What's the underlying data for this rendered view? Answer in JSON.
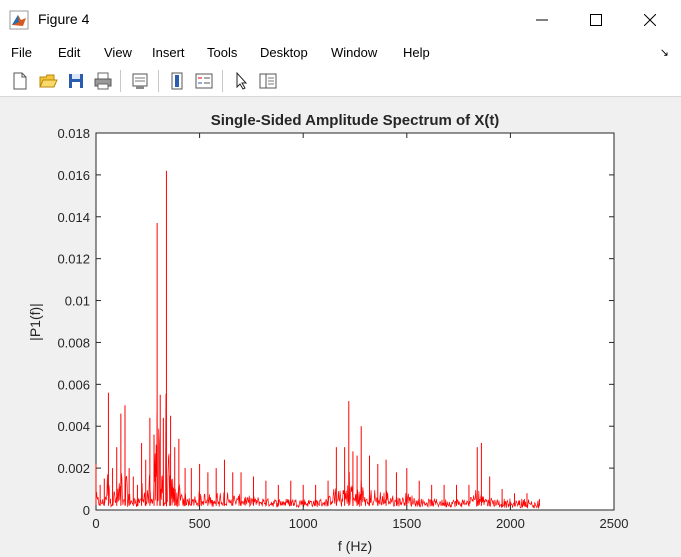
{
  "window": {
    "title": "Figure 4"
  },
  "menu": [
    "File",
    "Edit",
    "View",
    "Insert",
    "Tools",
    "Desktop",
    "Window",
    "Help"
  ],
  "toolbar": {
    "icons": [
      "new-figure-icon",
      "open-file-icon",
      "save-icon",
      "print-icon",
      "print-preview-icon",
      "colorbar-icon",
      "legend-icon",
      "pointer-icon",
      "property-editor-icon"
    ]
  },
  "colors": {
    "series": "#ff0000",
    "background": "#f0f0f0",
    "axes": "#ffffff"
  },
  "chart_data": {
    "type": "line",
    "title": "Single-Sided Amplitude Spectrum of X(t)",
    "xlabel": "f (Hz)",
    "ylabel": "|P1(f)|",
    "xlim": [
      0,
      2500
    ],
    "ylim": [
      0,
      0.018
    ],
    "xticks": [
      "0",
      "500",
      "1000",
      "1500",
      "2000",
      "2500"
    ],
    "yticks": [
      "0",
      "0.002",
      "0.004",
      "0.006",
      "0.008",
      "0.01",
      "0.012",
      "0.014",
      "0.016",
      "0.018"
    ],
    "grid": false,
    "series": [
      {
        "color": "#ff0000",
        "x": [
          0,
          20,
          40,
          60,
          80,
          100,
          120,
          140,
          160,
          180,
          200,
          220,
          240,
          260,
          280,
          295,
          310,
          325,
          340,
          360,
          380,
          400,
          430,
          460,
          500,
          540,
          580,
          620,
          660,
          700,
          760,
          820,
          880,
          940,
          1000,
          1060,
          1120,
          1160,
          1200,
          1220,
          1240,
          1260,
          1280,
          1320,
          1360,
          1400,
          1450,
          1500,
          1560,
          1620,
          1680,
          1740,
          1800,
          1840,
          1860,
          1900,
          1960,
          2020,
          2080,
          2140
        ],
        "y": [
          0.0022,
          0.0012,
          0.0015,
          0.0056,
          0.002,
          0.003,
          0.0046,
          0.005,
          0.002,
          0.0016,
          0.0012,
          0.0032,
          0.0024,
          0.0044,
          0.0036,
          0.0137,
          0.0055,
          0.0044,
          0.0162,
          0.0045,
          0.003,
          0.0034,
          0.002,
          0.002,
          0.0022,
          0.0018,
          0.002,
          0.0024,
          0.0018,
          0.0018,
          0.0016,
          0.0014,
          0.0012,
          0.0014,
          0.0012,
          0.0012,
          0.0014,
          0.003,
          0.003,
          0.0052,
          0.0028,
          0.0026,
          0.004,
          0.0026,
          0.0022,
          0.0024,
          0.0018,
          0.002,
          0.0014,
          0.0012,
          0.0012,
          0.0012,
          0.0012,
          0.003,
          0.0032,
          0.0016,
          0.001,
          0.0008,
          0.0008,
          0.0005
        ]
      }
    ]
  }
}
